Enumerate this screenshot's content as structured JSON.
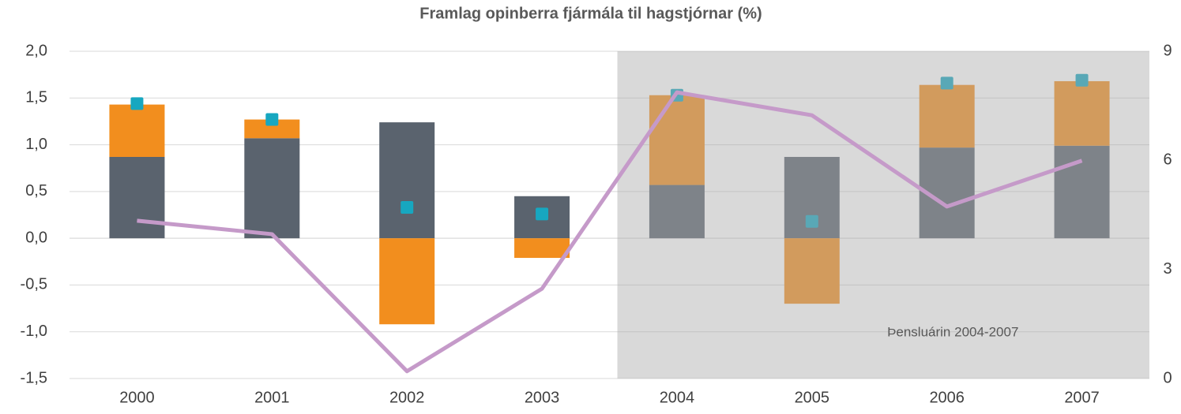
{
  "chart_data": {
    "type": "bar",
    "title": "Framlag opinberra fjármála til hagstjórnar (%)",
    "categories": [
      "2000",
      "2001",
      "2002",
      "2003",
      "2004",
      "2005",
      "2006",
      "2007"
    ],
    "series": [
      {
        "type": "bar",
        "color": "#5a636e",
        "values": [
          0.87,
          1.07,
          1.24,
          0.45,
          0.57,
          0.87,
          0.97,
          0.99
        ]
      },
      {
        "type": "bar",
        "color": "#f28e1e",
        "values": [
          0.56,
          0.2,
          -0.92,
          -0.21,
          0.96,
          -0.7,
          0.67,
          0.69
        ]
      },
      {
        "type": "marker",
        "color": "#17a7c0",
        "values": [
          1.44,
          1.27,
          0.33,
          0.26,
          1.53,
          0.18,
          1.66,
          1.69
        ]
      },
      {
        "type": "line",
        "color": "#c59ac9",
        "axis": "y2",
        "values": [
          4.34,
          3.97,
          0.2,
          2.47,
          7.87,
          7.24,
          4.73,
          5.99
        ]
      }
    ],
    "ylim": [
      -1.5,
      2.0
    ],
    "yticks": [
      {
        "value": -1.5,
        "label": "-1,5"
      },
      {
        "value": -1.0,
        "label": "-1,0"
      },
      {
        "value": -0.5,
        "label": "-0,5"
      },
      {
        "value": 0,
        "label": "0,0"
      },
      {
        "value": 0.5,
        "label": "0,5"
      },
      {
        "value": 1.0,
        "label": "1,0"
      },
      {
        "value": 1.5,
        "label": "1,5"
      },
      {
        "value": 2.0,
        "label": "2,0"
      }
    ],
    "y2lim": [
      0,
      9
    ],
    "y2ticks": [
      0,
      3,
      6,
      9
    ],
    "grid": true,
    "annotation": {
      "text": "Þensluárin 2004-2007",
      "from": "2004",
      "to": "2007"
    }
  }
}
